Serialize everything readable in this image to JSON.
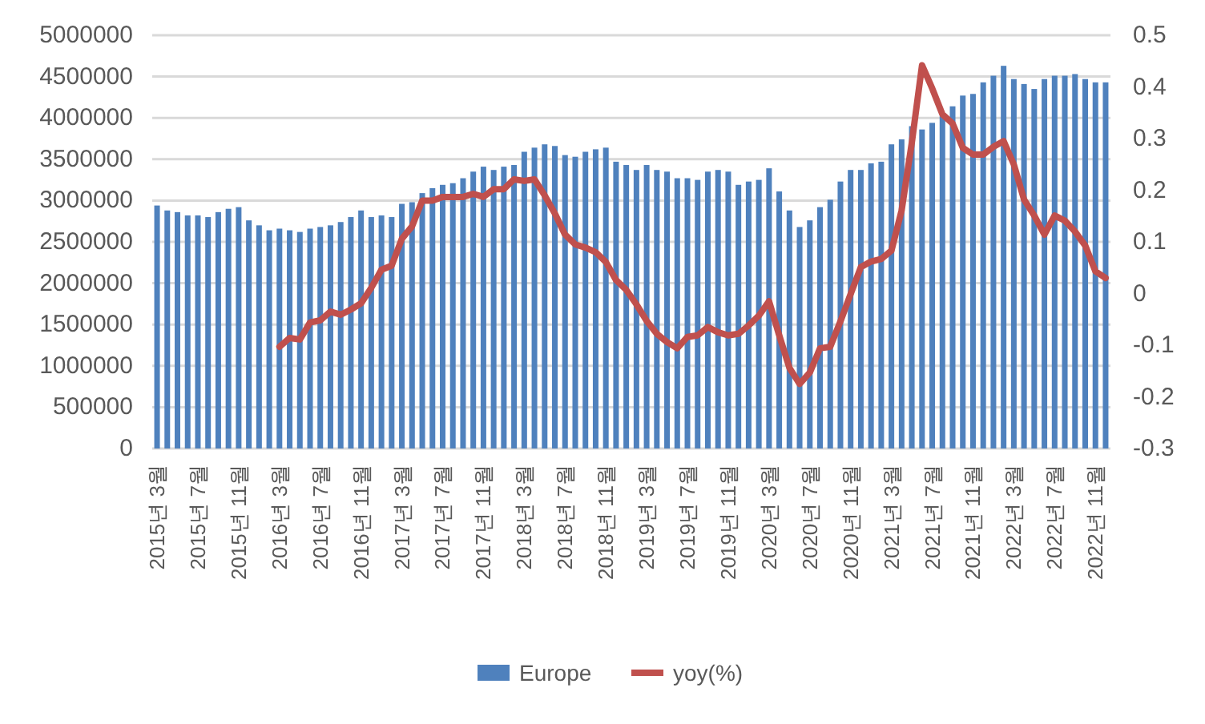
{
  "chart_data": {
    "type": "bar",
    "categories": [
      "2015년 3월",
      null,
      null,
      null,
      "2015년 7월",
      null,
      null,
      null,
      "2015년 11월",
      null,
      null,
      null,
      "2016년 3월",
      null,
      null,
      null,
      "2016년 7월",
      null,
      null,
      null,
      "2016년 11월",
      null,
      null,
      null,
      "2017년 3월",
      null,
      null,
      null,
      "2017년 7월",
      null,
      null,
      null,
      "2017년 11월",
      null,
      null,
      null,
      "2018년 3월",
      null,
      null,
      null,
      "2018년 7월",
      null,
      null,
      null,
      "2018년 11월",
      null,
      null,
      null,
      "2019년 3월",
      null,
      null,
      null,
      "2019년 7월",
      null,
      null,
      null,
      "2019년 11월",
      null,
      null,
      null,
      "2020년 3월",
      null,
      null,
      null,
      "2020년 7월",
      null,
      null,
      null,
      "2020년 11월",
      null,
      null,
      null,
      "2021년 3월",
      null,
      null,
      null,
      "2021년 7월",
      null,
      null,
      null,
      "2021년 11월",
      null,
      null,
      null,
      "2022년 3월",
      null,
      null,
      null,
      "2022년 7월",
      null,
      null,
      null,
      "2022년 11월",
      null
    ],
    "series": [
      {
        "name": "Europe",
        "color": "#4f81bd",
        "values": [
          2940000,
          2880000,
          2860000,
          2820000,
          2820000,
          2800000,
          2860000,
          2900000,
          2920000,
          2760000,
          2700000,
          2640000,
          2660000,
          2640000,
          2620000,
          2660000,
          2680000,
          2700000,
          2740000,
          2800000,
          2880000,
          2800000,
          2820000,
          2800000,
          2960000,
          2980000,
          3090000,
          3150000,
          3190000,
          3210000,
          3270000,
          3350000,
          3410000,
          3370000,
          3410000,
          3430000,
          3590000,
          3640000,
          3680000,
          3660000,
          3550000,
          3530000,
          3590000,
          3620000,
          3640000,
          3470000,
          3430000,
          3370000,
          3430000,
          3370000,
          3350000,
          3270000,
          3270000,
          3250000,
          3350000,
          3370000,
          3350000,
          3190000,
          3230000,
          3250000,
          3390000,
          3110000,
          2880000,
          2680000,
          2760000,
          2920000,
          3010000,
          3230000,
          3370000,
          3370000,
          3450000,
          3470000,
          3680000,
          3740000,
          3900000,
          3860000,
          3940000,
          4020000,
          4140000,
          4270000,
          4290000,
          4430000,
          4510000,
          4630000,
          4470000,
          4410000,
          4350000,
          4470000,
          4510000,
          4510000,
          4530000,
          4470000,
          4430000,
          4430000
        ]
      },
      {
        "name": "yoy(%)",
        "type": "line",
        "axis": "y2",
        "color": "#c0504d",
        "values": [
          null,
          null,
          null,
          null,
          null,
          null,
          null,
          null,
          null,
          null,
          null,
          null,
          -0.103,
          -0.086,
          -0.089,
          -0.056,
          -0.052,
          -0.035,
          -0.041,
          -0.031,
          -0.019,
          0.011,
          0.046,
          0.054,
          0.106,
          0.13,
          0.18,
          0.18,
          0.187,
          0.187,
          0.187,
          0.193,
          0.187,
          0.202,
          0.202,
          0.221,
          0.218,
          0.221,
          0.19,
          0.155,
          0.114,
          0.095,
          0.089,
          0.08,
          0.061,
          0.026,
          0.007,
          -0.021,
          -0.053,
          -0.078,
          -0.094,
          -0.106,
          -0.084,
          -0.081,
          -0.065,
          -0.075,
          -0.081,
          -0.078,
          -0.062,
          -0.043,
          -0.015,
          -0.081,
          -0.144,
          -0.175,
          -0.153,
          -0.106,
          -0.103,
          -0.054,
          -0.001,
          0.051,
          0.062,
          0.067,
          0.083,
          0.161,
          0.292,
          0.442,
          0.397,
          0.347,
          0.329,
          0.282,
          0.269,
          0.269,
          0.284,
          0.295,
          0.25,
          0.182,
          0.151,
          0.114,
          0.151,
          0.141,
          0.12,
          0.093,
          0.043,
          0.03
        ]
      }
    ],
    "ylim": [
      0,
      5000000
    ],
    "yticks": [
      0,
      500000,
      1000000,
      1500000,
      2000000,
      2500000,
      3000000,
      3500000,
      4000000,
      4500000,
      5000000
    ],
    "y2lim": [
      -0.3,
      0.5
    ],
    "y2ticks": [
      -0.3,
      -0.2,
      -0.1,
      0,
      0.1,
      0.2,
      0.3,
      0.4,
      0.5
    ],
    "grid": "y",
    "legend": "bottom",
    "marker": "none",
    "line_style": "solid"
  }
}
